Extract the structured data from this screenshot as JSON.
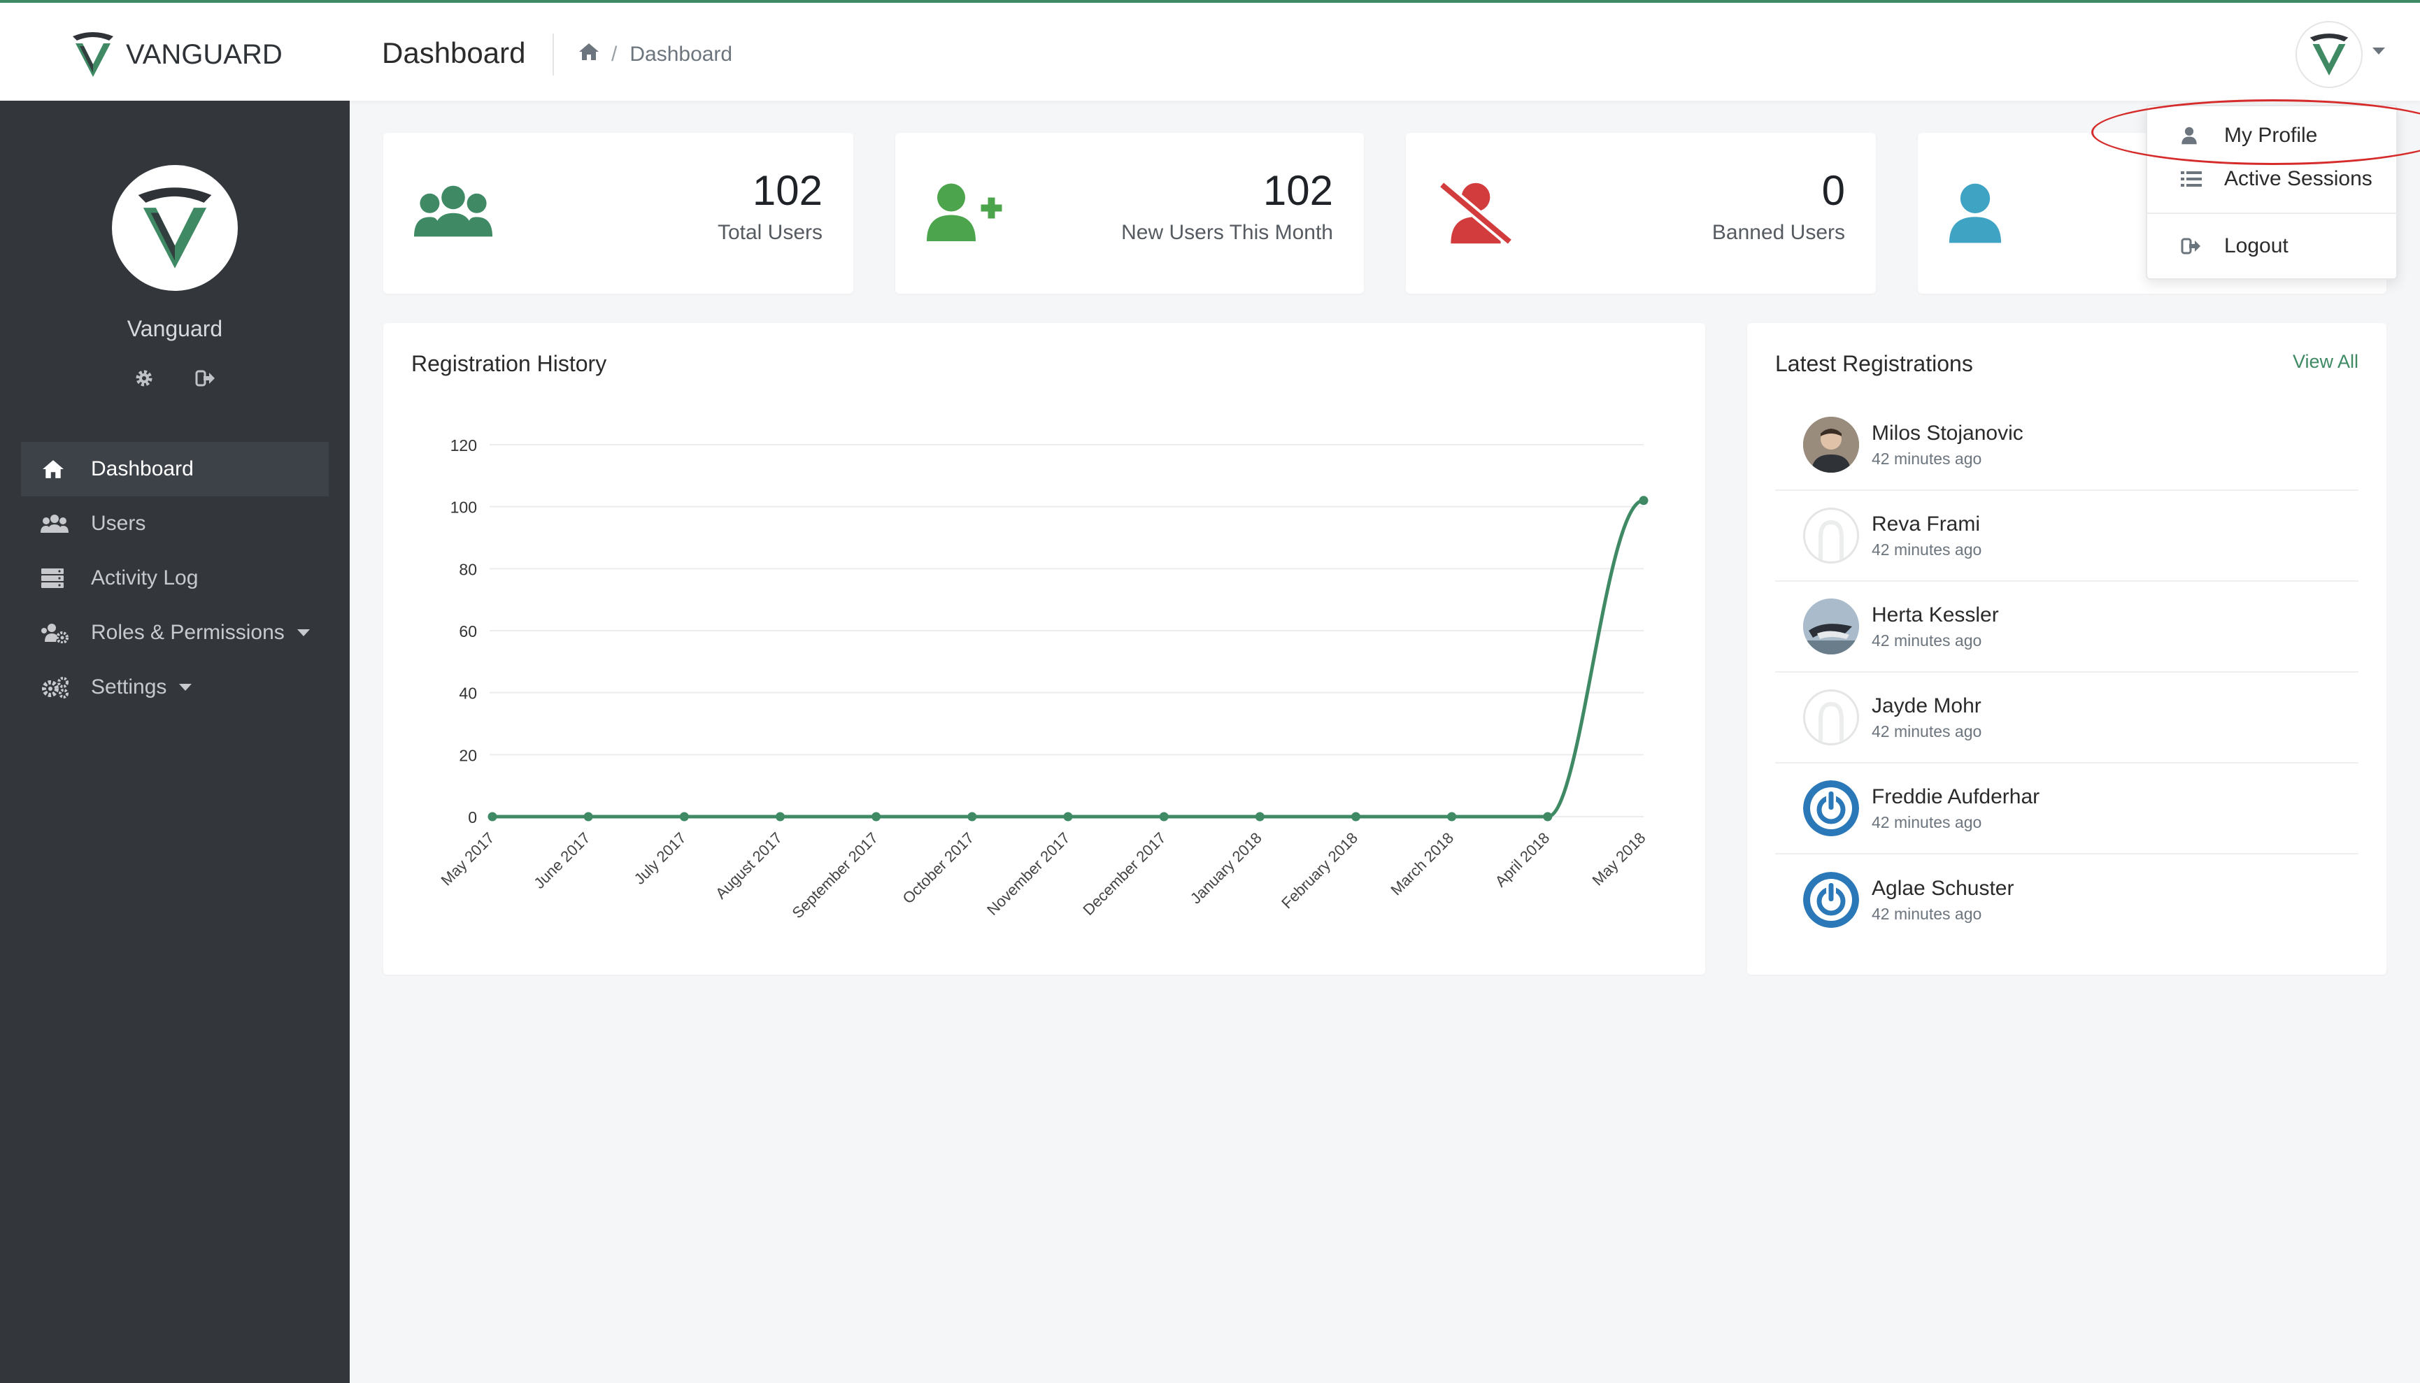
{
  "brand": {
    "name_light": "VAN",
    "name_bold": "GUARD",
    "accent": "#3f8a64"
  },
  "header": {
    "page_title": "Dashboard",
    "breadcrumb": [
      "Dashboard"
    ]
  },
  "sidebar": {
    "user_name": "Vanguard",
    "items": [
      {
        "label": "Dashboard",
        "icon": "home-icon",
        "active": true,
        "has_submenu": false
      },
      {
        "label": "Users",
        "icon": "users-icon",
        "active": false,
        "has_submenu": false
      },
      {
        "label": "Activity Log",
        "icon": "server-icon",
        "active": false,
        "has_submenu": false
      },
      {
        "label": "Roles & Permissions",
        "icon": "users-cog-icon",
        "active": false,
        "has_submenu": true
      },
      {
        "label": "Settings",
        "icon": "cogs-icon",
        "active": false,
        "has_submenu": true
      }
    ]
  },
  "stats": [
    {
      "value": "102",
      "label": "Total Users",
      "color": "#3f8a64",
      "icon": "users-icon"
    },
    {
      "value": "102",
      "label": "New Users This Month",
      "color": "#4ca54c",
      "icon": "user-plus-icon"
    },
    {
      "value": "0",
      "label": "Banned Users",
      "color": "#d23c3c",
      "icon": "user-slash-icon"
    },
    {
      "value": "",
      "label": "",
      "color": "#3fa3c4",
      "icon": "user-icon"
    }
  ],
  "user_menu": {
    "items": [
      {
        "label": "My Profile",
        "icon": "user-icon"
      },
      {
        "label": "Active Sessions",
        "icon": "list-icon"
      },
      {
        "label": "Logout",
        "icon": "sign-out-icon"
      }
    ]
  },
  "registration_history": {
    "title": "Registration History"
  },
  "chart_data": {
    "type": "line",
    "title": "",
    "xlabel": "",
    "ylabel": "",
    "categories": [
      "May 2017",
      "June 2017",
      "July 2017",
      "August 2017",
      "September 2017",
      "October 2017",
      "November 2017",
      "December 2017",
      "January 2018",
      "February 2018",
      "March 2018",
      "April 2018",
      "May 2018"
    ],
    "values": [
      0,
      0,
      0,
      0,
      0,
      0,
      0,
      0,
      0,
      0,
      0,
      0,
      102
    ],
    "ylim": [
      0,
      120
    ],
    "yticks": [
      0,
      20,
      40,
      60,
      80,
      100,
      120
    ],
    "grid": true,
    "color": "#3f8a64"
  },
  "latest_registrations": {
    "title": "Latest Registrations",
    "view_all": "View All",
    "items": [
      {
        "name": "Milos Stojanovic",
        "time": "42 minutes ago",
        "avatar": "photo"
      },
      {
        "name": "Reva Frami",
        "time": "42 minutes ago",
        "avatar": "placeholder"
      },
      {
        "name": "Herta Kessler",
        "time": "42 minutes ago",
        "avatar": "photo-bird"
      },
      {
        "name": "Jayde Mohr",
        "time": "42 minutes ago",
        "avatar": "placeholder"
      },
      {
        "name": "Freddie Aufderhar",
        "time": "42 minutes ago",
        "avatar": "power"
      },
      {
        "name": "Aglae Schuster",
        "time": "42 minutes ago",
        "avatar": "power"
      }
    ]
  }
}
